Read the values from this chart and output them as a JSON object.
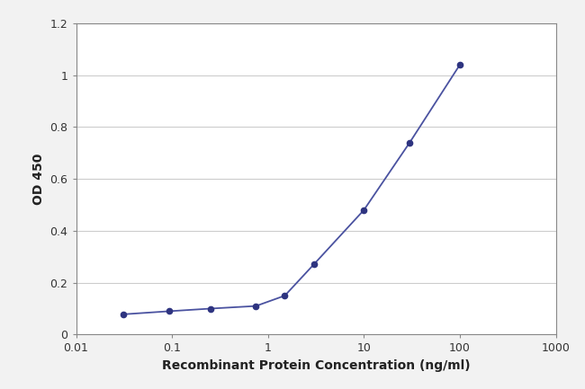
{
  "x_values": [
    0.031,
    0.094,
    0.25,
    0.75,
    1.5,
    3.0,
    10.0,
    30.0,
    100.0
  ],
  "y_values": [
    0.078,
    0.09,
    0.1,
    0.11,
    0.15,
    0.27,
    0.48,
    0.74,
    1.04
  ],
  "xlabel": "Recombinant Protein Concentration (ng/ml)",
  "ylabel": "OD 450",
  "ylim": [
    0,
    1.2
  ],
  "xlim": [
    0.01,
    1000
  ],
  "yticks": [
    0,
    0.2,
    0.4,
    0.6,
    0.8,
    1.0,
    1.2
  ],
  "xticks": [
    0.01,
    0.1,
    1,
    10,
    100,
    1000
  ],
  "line_color": "#4a52a0",
  "marker_color": "#2e3480",
  "bg_color": "#f2f2f2",
  "plot_bg_color": "#ffffff",
  "grid_color": "#cccccc",
  "font_size_label": 10,
  "font_size_tick": 9,
  "title_font_size": 10
}
